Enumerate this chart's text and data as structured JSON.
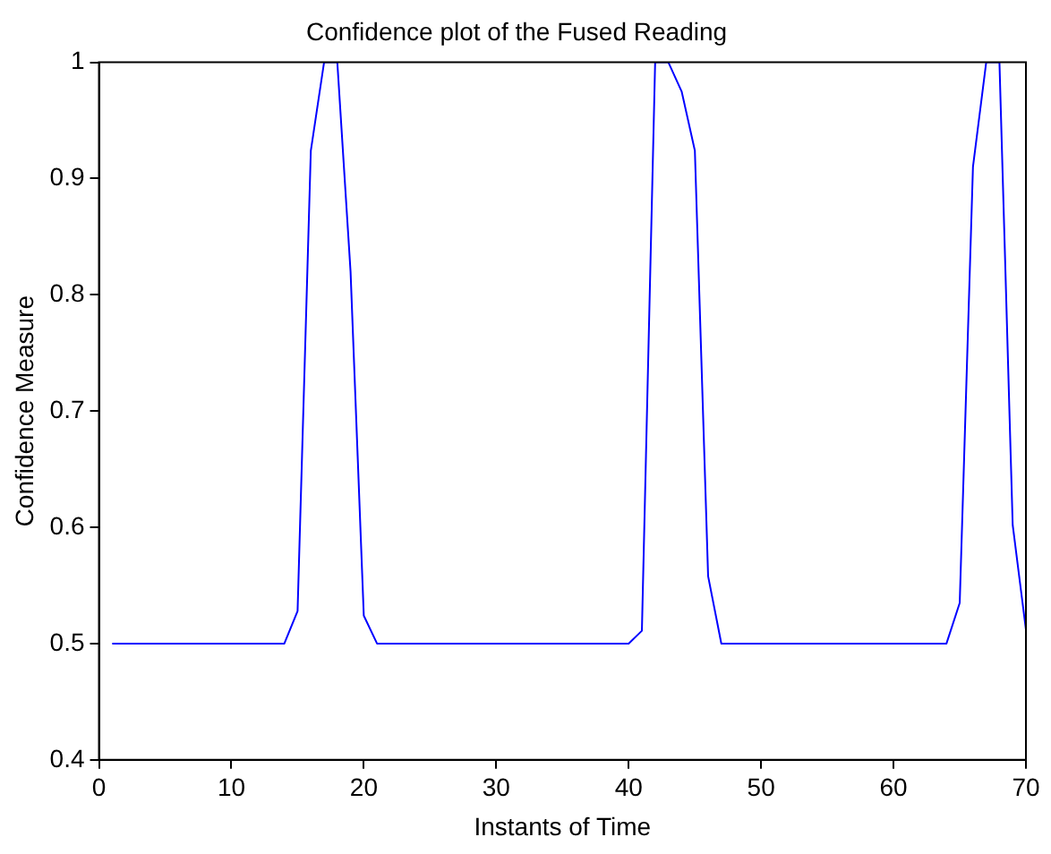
{
  "chart_data": {
    "type": "line",
    "title": "Confidence plot of the Fused Reading",
    "xlabel": "Instants of Time",
    "ylabel": "Confidence Measure",
    "x": [
      1,
      14,
      15,
      16,
      17,
      18,
      19,
      20,
      21,
      40,
      41,
      42,
      43,
      44,
      45,
      46,
      47,
      64,
      65,
      66,
      67,
      68,
      69,
      70
    ],
    "series": [
      {
        "color": "#0000ff",
        "values": [
          0.5,
          0.5,
          0.528,
          0.924,
          1,
          1,
          0.82,
          0.524,
          0.5,
          0.5,
          0.511,
          1,
          1,
          0.975,
          0.924,
          0.558,
          0.5,
          0.5,
          0.535,
          0.91,
          1,
          1,
          0.602,
          0.512
        ]
      }
    ],
    "xlim": [
      0,
      70
    ],
    "xticks": [
      0,
      10,
      20,
      30,
      40,
      50,
      60,
      70
    ],
    "ylim": [
      0.4,
      1
    ],
    "yticks": [
      0.4,
      0.5,
      0.6,
      0.7,
      0.8,
      0.9,
      1
    ],
    "grid": false,
    "legend": false,
    "marker": "none",
    "line_style": "solid"
  }
}
